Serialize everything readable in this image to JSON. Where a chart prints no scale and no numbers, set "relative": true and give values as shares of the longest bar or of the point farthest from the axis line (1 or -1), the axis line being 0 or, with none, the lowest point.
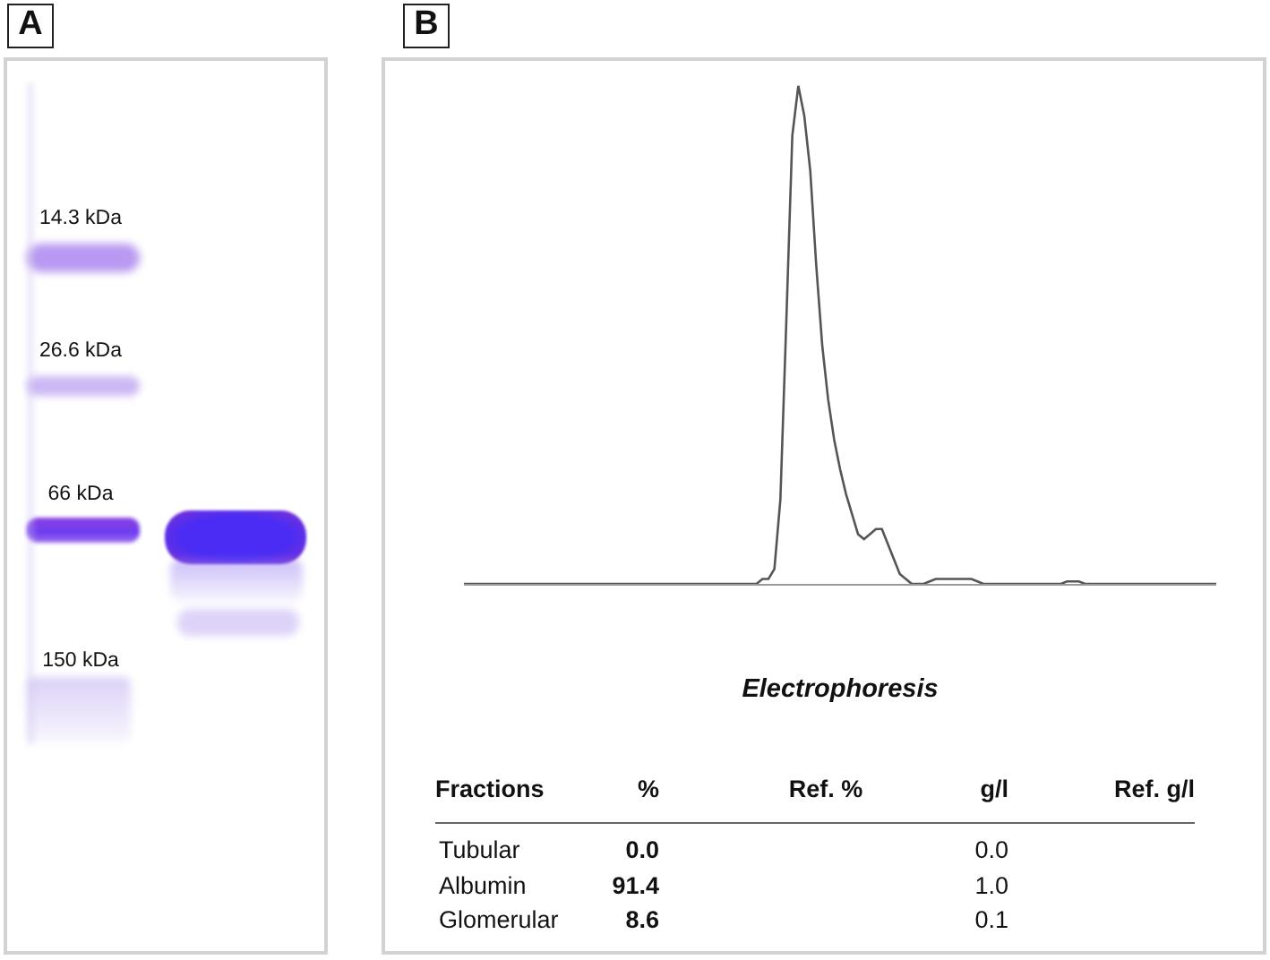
{
  "chart_data": [
    {
      "type": "other",
      "title": "A",
      "annotations": [
        "14.3 kDa",
        "26.6 kDa",
        "66 kDa",
        "150 kDa"
      ]
    },
    {
      "type": "line",
      "title": "B",
      "xlabel": "Electrophoresis",
      "relative": true,
      "color": "#555555",
      "categories": [
        null,
        null,
        null,
        null,
        null,
        null,
        null,
        null,
        null,
        null,
        null,
        null,
        null,
        null,
        null,
        null,
        null,
        null,
        null,
        null,
        null,
        null,
        null,
        null,
        null,
        null,
        null,
        null,
        null,
        null,
        null,
        null,
        null,
        null,
        null,
        null,
        null,
        null,
        null,
        null,
        null,
        null,
        null,
        null,
        null,
        null,
        null,
        null,
        null,
        null,
        null,
        null,
        null,
        null,
        null,
        null,
        null,
        null,
        null,
        null,
        null,
        null,
        null,
        null,
        null,
        null,
        null,
        null,
        null,
        null,
        null,
        null,
        null,
        null,
        null,
        null,
        null,
        null,
        null,
        null,
        null,
        null,
        null,
        null,
        null,
        null,
        null,
        null,
        null,
        null,
        null,
        null,
        null,
        null,
        null,
        null,
        null,
        null,
        null,
        null,
        null,
        null,
        null,
        null,
        null,
        null,
        null,
        null,
        null,
        null,
        null,
        null,
        null,
        null,
        null,
        null,
        null,
        null,
        null,
        null,
        null,
        null,
        null,
        null,
        null,
        null,
        null
      ],
      "values": [
        0,
        0,
        0,
        0,
        0,
        0,
        0,
        0,
        0,
        0,
        0,
        0,
        0,
        0,
        0,
        0,
        0,
        0,
        0,
        0,
        0,
        0,
        0,
        0,
        0,
        0,
        0,
        0,
        0,
        0,
        0,
        0,
        0,
        0,
        0,
        0,
        0,
        0,
        0,
        0,
        0,
        0,
        0,
        0,
        0,
        0,
        0,
        0,
        0,
        0,
        0.01,
        0.01,
        0.03,
        0.17,
        0.53,
        0.9,
        1,
        0.94,
        0.83,
        0.64,
        0.48,
        0.37,
        0.29,
        0.23,
        0.18,
        0.14,
        0.1,
        0.09,
        0.1,
        0.11,
        0.11,
        0.08,
        0.05,
        0.02,
        0.01,
        0,
        0,
        0,
        0.005,
        0.01,
        0.01,
        0.01,
        0.01,
        0.01,
        0.01,
        0.01,
        0.005,
        0,
        0,
        0,
        0,
        0,
        0,
        0,
        0,
        0,
        0,
        0,
        0,
        0,
        0,
        0.005,
        0.005,
        0.005,
        0,
        0,
        0,
        0,
        0,
        0,
        0,
        0,
        0,
        0,
        0,
        0,
        0,
        0,
        0,
        0,
        0,
        0,
        0,
        0,
        0,
        0,
        0
      ],
      "annotations": [
        "Fractions",
        "%",
        "Ref. %",
        "g/l",
        "Ref. g/l",
        "Tubular",
        "0.0",
        "0.0",
        "Albumin",
        "91.4",
        "1.0",
        "Glomerular",
        "8.6",
        "0.1"
      ]
    }
  ]
}
